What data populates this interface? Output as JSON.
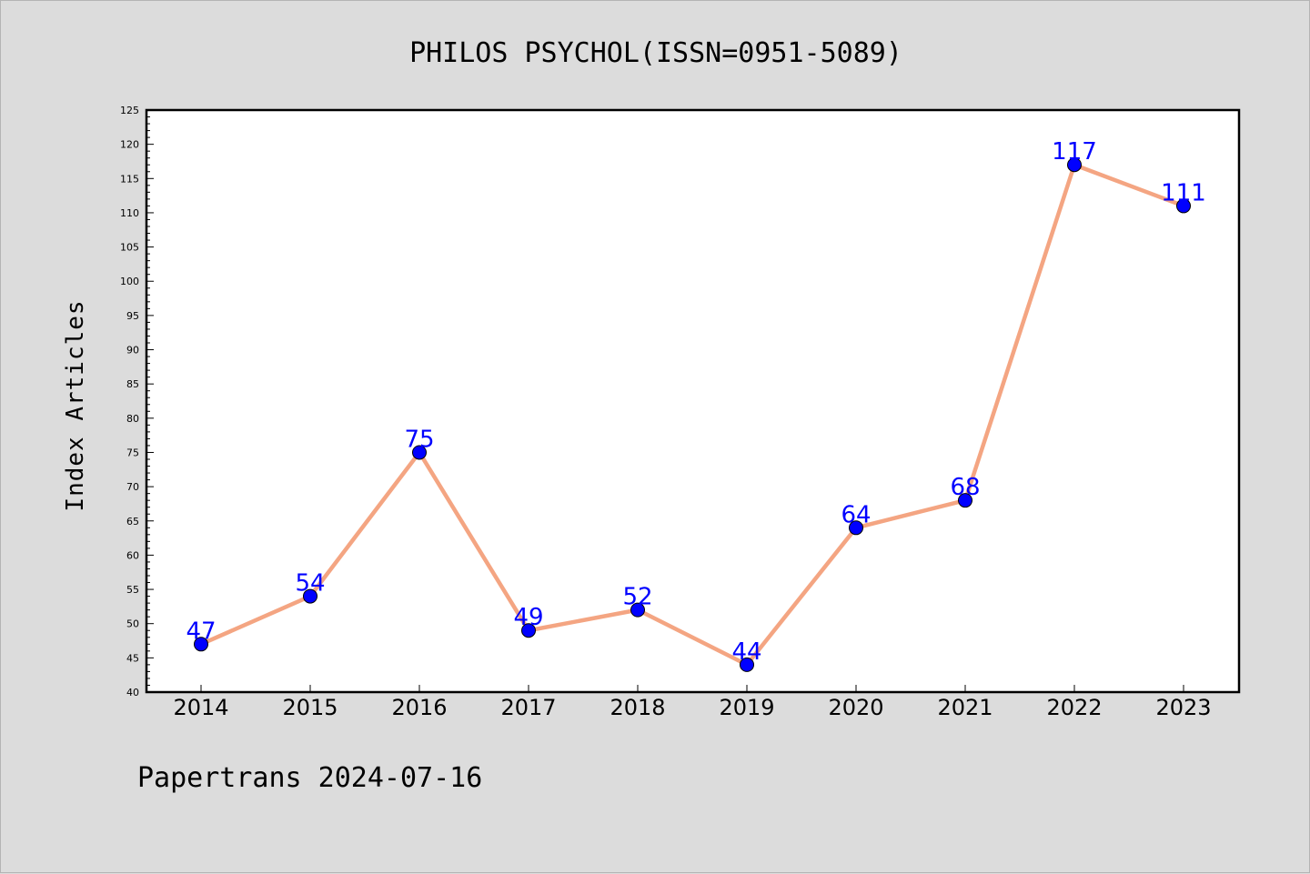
{
  "chart_data": {
    "type": "line",
    "title": "PHILOS PSYCHOL(ISSN=0951-5089)",
    "xlabel": "",
    "ylabel": "Index Articles",
    "categories": [
      "2014",
      "2015",
      "2016",
      "2017",
      "2018",
      "2019",
      "2020",
      "2021",
      "2022",
      "2023"
    ],
    "series": [
      {
        "values": [
          47,
          54,
          75,
          49,
          52,
          44,
          64,
          68,
          117,
          111
        ]
      }
    ],
    "ylim": [
      40,
      125
    ],
    "ytick_step": 5,
    "grid": false,
    "line_color": "#f4a582",
    "marker_color": "#0000ff",
    "label_color": "#0000ff",
    "footer": "Papertrans 2024-07-16"
  }
}
